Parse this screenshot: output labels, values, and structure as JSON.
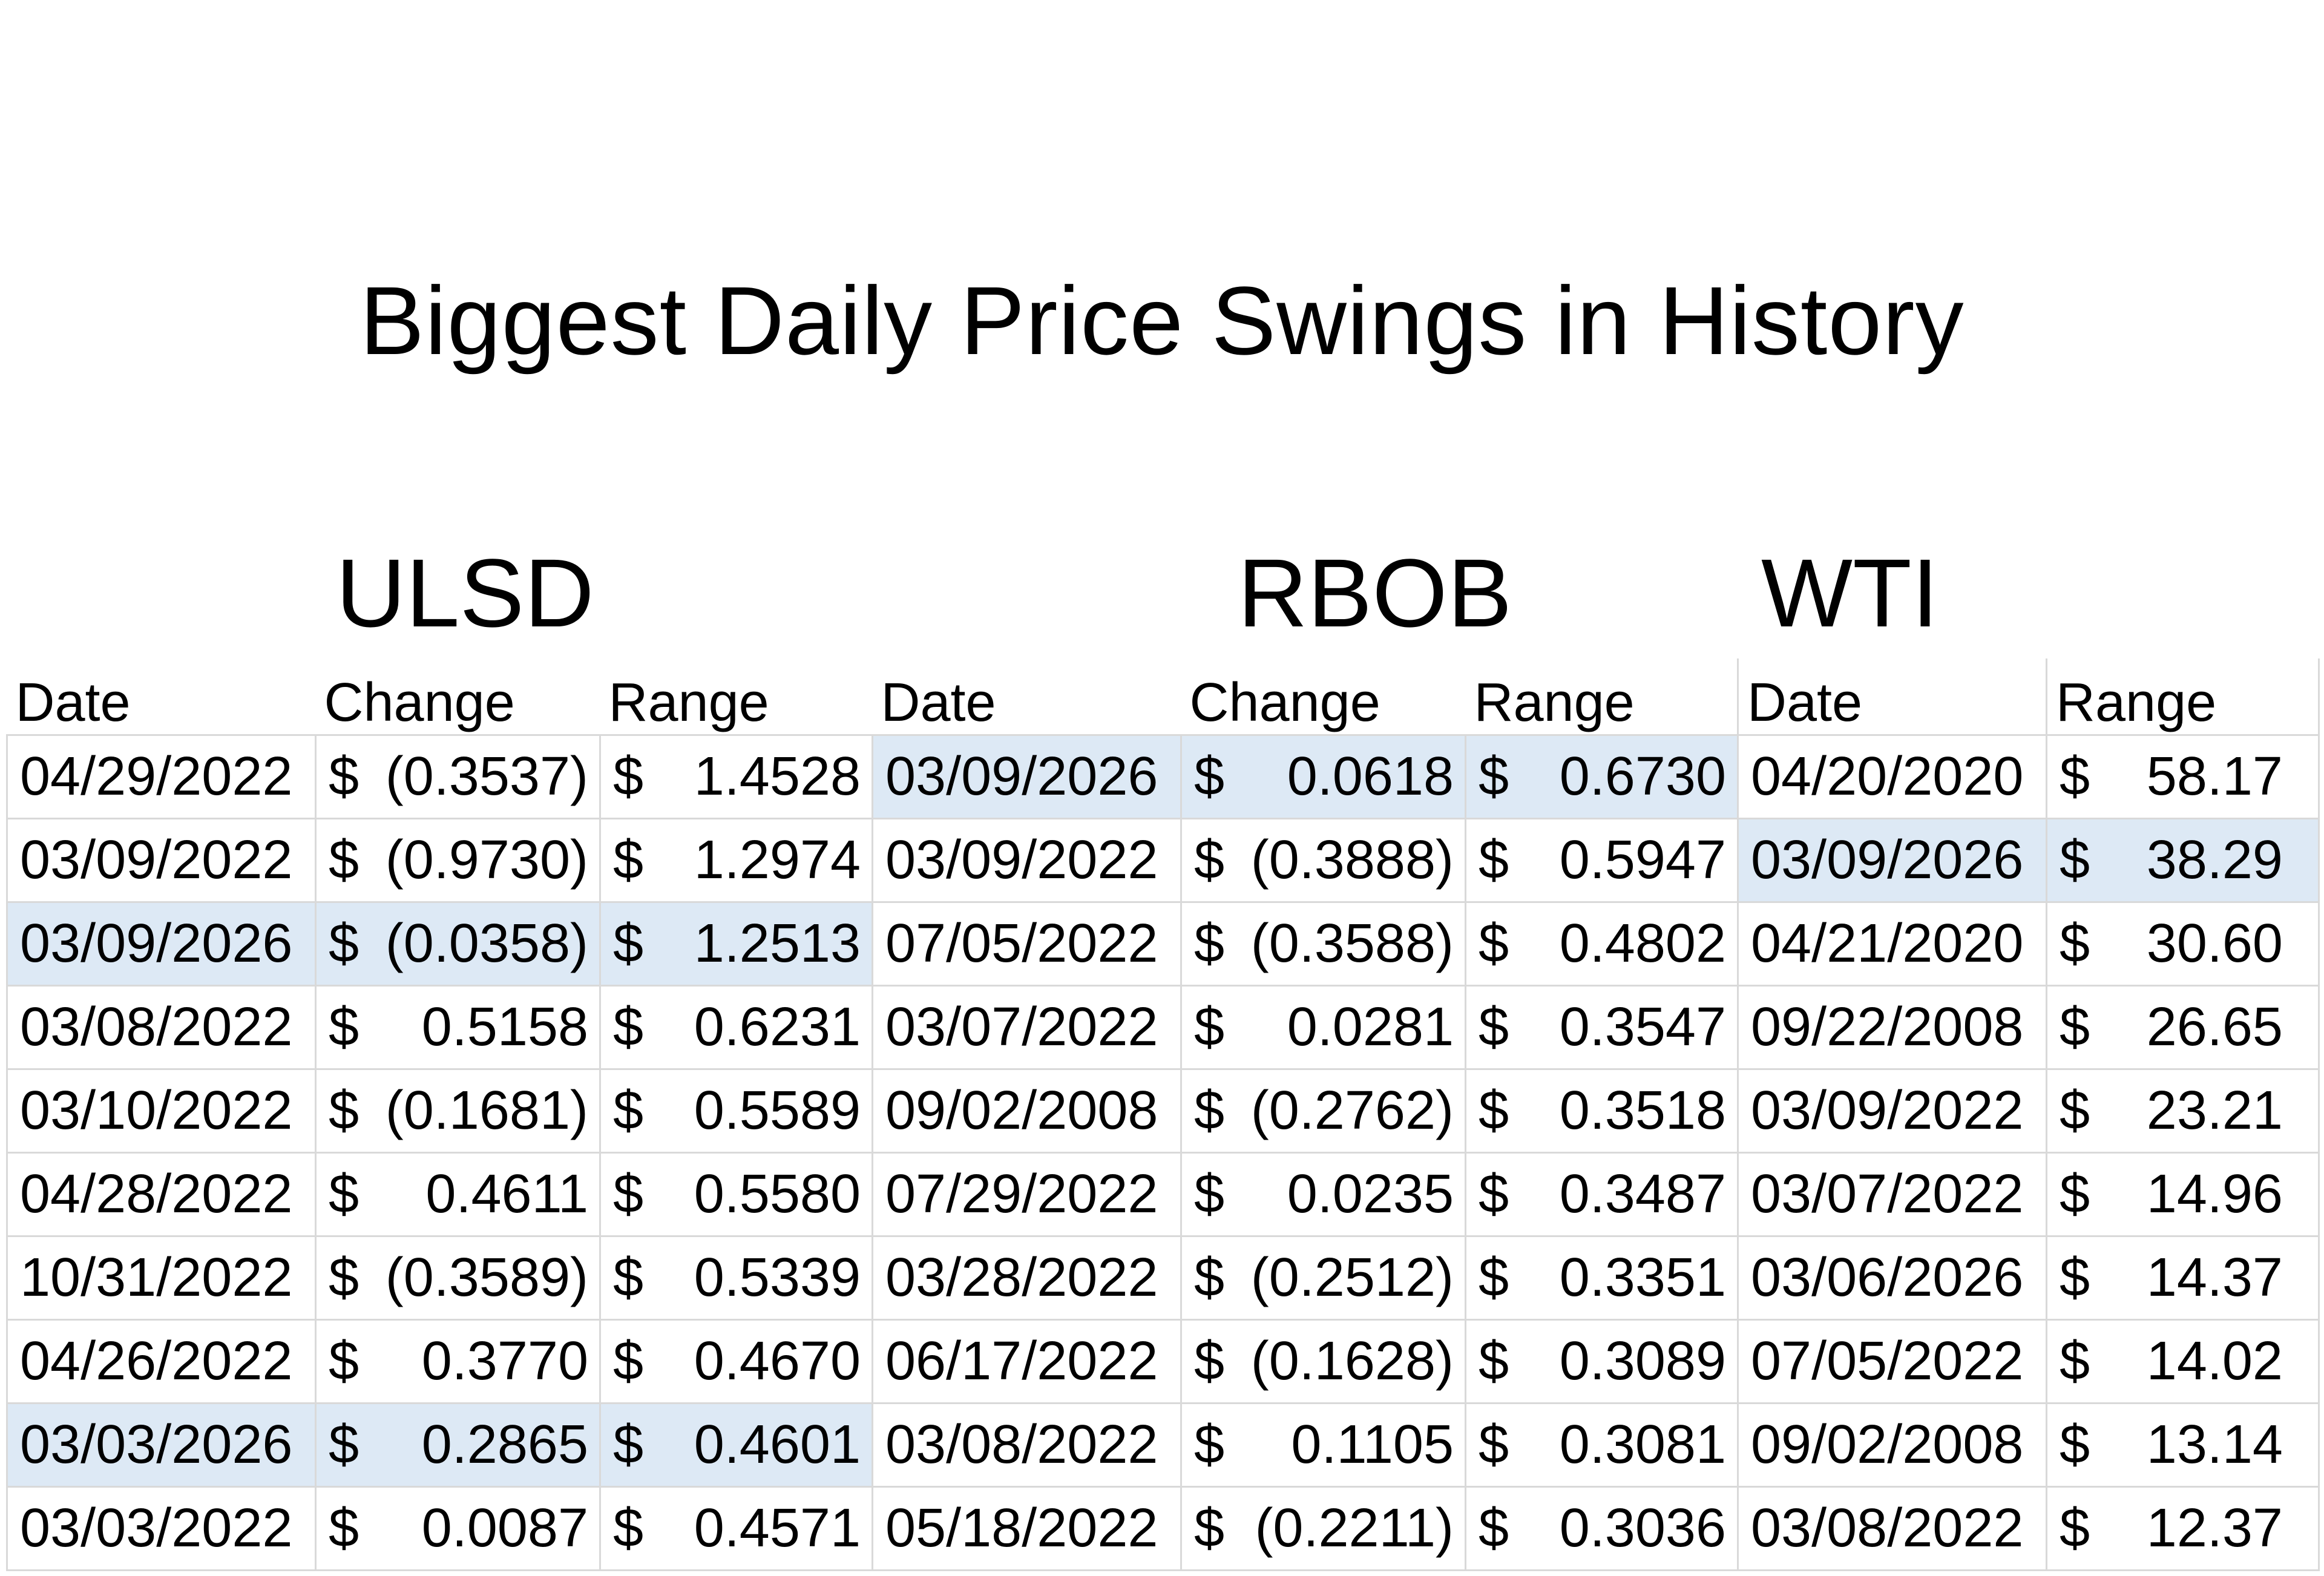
{
  "title": "Biggest Daily Price Swings in History",
  "accent_highlight": "#dde9f5",
  "groups": {
    "ulsd": "ULSD",
    "rbob": "RBOB",
    "wti": "WTI"
  },
  "headers": {
    "ulsd": [
      "Date",
      "Change",
      "Range"
    ],
    "rbob": [
      "Date",
      "Change",
      "Range"
    ],
    "wti": [
      "Date",
      "Range"
    ]
  },
  "currency_symbol": "$",
  "ulsd": [
    {
      "date": "04/29/2022",
      "change": "(0.3537)",
      "range": "1.4528",
      "highlight": false
    },
    {
      "date": "03/09/2022",
      "change": "(0.9730)",
      "range": "1.2974",
      "highlight": false
    },
    {
      "date": "03/09/2026",
      "change": "(0.0358)",
      "range": "1.2513",
      "highlight": true
    },
    {
      "date": "03/08/2022",
      "change": "0.5158",
      "range": "0.6231",
      "highlight": false
    },
    {
      "date": "03/10/2022",
      "change": "(0.1681)",
      "range": "0.5589",
      "highlight": false
    },
    {
      "date": "04/28/2022",
      "change": "0.4611",
      "range": "0.5580",
      "highlight": false
    },
    {
      "date": "10/31/2022",
      "change": "(0.3589)",
      "range": "0.5339",
      "highlight": false
    },
    {
      "date": "04/26/2022",
      "change": "0.3770",
      "range": "0.4670",
      "highlight": false
    },
    {
      "date": "03/03/2026",
      "change": "0.2865",
      "range": "0.4601",
      "highlight": true
    },
    {
      "date": "03/03/2022",
      "change": "0.0087",
      "range": "0.4571",
      "highlight": false
    }
  ],
  "rbob": [
    {
      "date": "03/09/2026",
      "change": "0.0618",
      "range": "0.6730",
      "highlight": true
    },
    {
      "date": "03/09/2022",
      "change": "(0.3888)",
      "range": "0.5947",
      "highlight": false
    },
    {
      "date": "07/05/2022",
      "change": "(0.3588)",
      "range": "0.4802",
      "highlight": false
    },
    {
      "date": "03/07/2022",
      "change": "0.0281",
      "range": "0.3547",
      "highlight": false
    },
    {
      "date": "09/02/2008",
      "change": "(0.2762)",
      "range": "0.3518",
      "highlight": false
    },
    {
      "date": "07/29/2022",
      "change": "0.0235",
      "range": "0.3487",
      "highlight": false
    },
    {
      "date": "03/28/2022",
      "change": "(0.2512)",
      "range": "0.3351",
      "highlight": false
    },
    {
      "date": "06/17/2022",
      "change": "(0.1628)",
      "range": "0.3089",
      "highlight": false
    },
    {
      "date": "03/08/2022",
      "change": "0.1105",
      "range": "0.3081",
      "highlight": false
    },
    {
      "date": "05/18/2022",
      "change": "(0.2211)",
      "range": "0.3036",
      "highlight": false
    }
  ],
  "wti": [
    {
      "date": "04/20/2020",
      "range": "58.17",
      "highlight": false
    },
    {
      "date": "03/09/2026",
      "range": "38.29",
      "highlight": true
    },
    {
      "date": "04/21/2020",
      "range": "30.60",
      "highlight": false
    },
    {
      "date": "09/22/2008",
      "range": "26.65",
      "highlight": false
    },
    {
      "date": "03/09/2022",
      "range": "23.21",
      "highlight": false
    },
    {
      "date": "03/07/2022",
      "range": "14.96",
      "highlight": false
    },
    {
      "date": "03/06/2026",
      "range": "14.37",
      "highlight": false
    },
    {
      "date": "07/05/2022",
      "range": "14.02",
      "highlight": false
    },
    {
      "date": "09/02/2008",
      "range": "13.14",
      "highlight": false
    },
    {
      "date": "03/08/2022",
      "range": "12.37",
      "highlight": false
    }
  ]
}
